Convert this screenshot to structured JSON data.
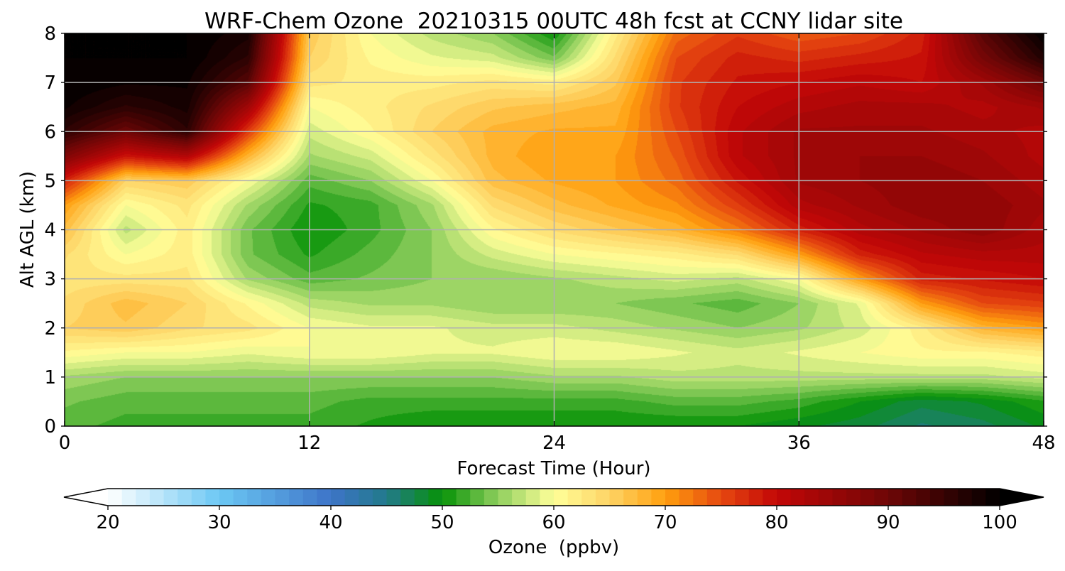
{
  "chart_data": {
    "type": "heatmap",
    "title": "WRF-Chem Ozone  20210315 00UTC 48h fcst at CCNY lidar site",
    "xlabel": "Forecast Time (Hour)",
    "ylabel": "Alt AGL (km)",
    "xlim": [
      0,
      48
    ],
    "ylim": [
      0,
      8
    ],
    "x_ticks": [
      0,
      12,
      24,
      36,
      48
    ],
    "y_ticks": [
      0,
      1,
      2,
      3,
      4,
      5,
      6,
      7,
      8
    ],
    "grid": true,
    "x": [
      0,
      3,
      6,
      9,
      12,
      15,
      18,
      21,
      24,
      27,
      30,
      33,
      36,
      39,
      42,
      45,
      48
    ],
    "y": [
      0,
      0.5,
      1,
      1.5,
      2,
      2.5,
      3,
      3.5,
      4,
      4.5,
      5,
      5.5,
      6,
      6.5,
      7,
      7.5,
      8
    ],
    "z": [
      [
        53,
        52,
        52,
        52,
        52,
        51,
        50,
        50,
        50,
        50,
        50,
        50,
        49,
        48,
        46,
        47,
        49
      ],
      [
        54,
        53,
        53,
        53,
        53,
        52,
        52,
        52,
        52,
        52,
        53,
        53,
        52,
        50,
        48,
        49,
        51
      ],
      [
        56,
        55,
        55,
        55,
        55,
        55,
        55,
        55,
        56,
        56,
        57,
        57,
        57,
        57,
        57,
        57,
        58
      ],
      [
        61,
        60,
        60,
        59,
        60,
        60,
        59,
        59,
        60,
        60,
        59,
        58,
        59,
        60,
        61,
        61,
        62
      ],
      [
        65,
        66,
        64,
        63,
        60,
        59,
        59,
        58,
        58,
        57,
        56,
        55,
        56,
        58,
        62,
        68,
        70
      ],
      [
        64,
        67,
        65,
        61,
        57,
        56,
        56,
        55,
        55,
        55,
        54,
        53,
        55,
        59,
        70,
        75,
        76
      ],
      [
        63,
        63,
        63,
        56,
        53,
        54,
        55,
        55,
        56,
        57,
        58,
        57,
        60,
        70,
        78,
        79,
        80
      ],
      [
        64,
        60,
        62,
        54,
        51,
        53,
        55,
        58,
        60,
        61,
        62,
        64,
        70,
        78,
        81,
        82,
        82
      ],
      [
        67,
        57,
        62,
        54,
        50,
        52,
        55,
        61,
        64,
        66,
        68,
        72,
        78,
        82,
        84,
        86,
        83
      ],
      [
        70,
        60,
        63,
        56,
        51,
        52,
        56,
        64,
        67,
        69,
        71,
        76,
        82,
        84,
        86,
        86,
        84
      ],
      [
        78,
        65,
        66,
        60,
        53,
        55,
        60,
        67,
        69,
        70,
        73,
        79,
        84,
        85,
        86,
        85,
        83
      ],
      [
        88,
        79,
        82,
        68,
        56,
        58,
        63,
        68,
        70,
        70,
        74,
        81,
        84,
        85,
        85,
        84,
        82
      ],
      [
        96,
        90,
        96,
        76,
        58,
        61,
        65,
        68,
        69,
        69,
        75,
        81,
        84,
        84,
        84,
        83,
        82
      ],
      [
        99,
        96,
        98,
        84,
        60,
        62,
        64,
        66,
        67,
        68,
        76,
        80,
        82,
        83,
        83,
        82,
        84
      ],
      [
        100,
        99,
        99,
        92,
        63,
        62,
        62,
        63,
        62,
        66,
        76,
        79,
        80,
        81,
        80,
        84,
        90
      ],
      [
        100,
        100,
        100,
        96,
        65,
        61,
        59,
        58,
        54,
        64,
        75,
        78,
        77,
        78,
        79,
        89,
        97
      ],
      [
        100,
        100,
        100,
        98,
        66,
        60,
        57,
        55,
        50,
        62,
        73,
        76,
        74,
        75,
        78,
        92,
        100
      ]
    ],
    "colorbar": {
      "label": "Ozone  (ppbv)",
      "min": 20,
      "max": 100,
      "ticks": [
        20,
        30,
        40,
        50,
        60,
        70,
        80,
        90,
        100
      ],
      "extend": "both",
      "orientation": "horizontal",
      "stops": [
        {
          "v": 20,
          "c": "#ffffff"
        },
        {
          "v": 30,
          "c": "#6cc8f4"
        },
        {
          "v": 40,
          "c": "#3d74c8"
        },
        {
          "v": 45,
          "c": "#227a8a"
        },
        {
          "v": 50,
          "c": "#079207"
        },
        {
          "v": 55,
          "c": "#8fcf5e"
        },
        {
          "v": 60,
          "c": "#ffff99"
        },
        {
          "v": 65,
          "c": "#fed465"
        },
        {
          "v": 70,
          "c": "#ff9f0e"
        },
        {
          "v": 75,
          "c": "#e64810"
        },
        {
          "v": 80,
          "c": "#c30707"
        },
        {
          "v": 90,
          "c": "#6e0606"
        },
        {
          "v": 100,
          "c": "#000000"
        }
      ],
      "under_color": "#ffffff",
      "over_color": "#000000"
    },
    "grid_color": "#b0b0b0"
  }
}
